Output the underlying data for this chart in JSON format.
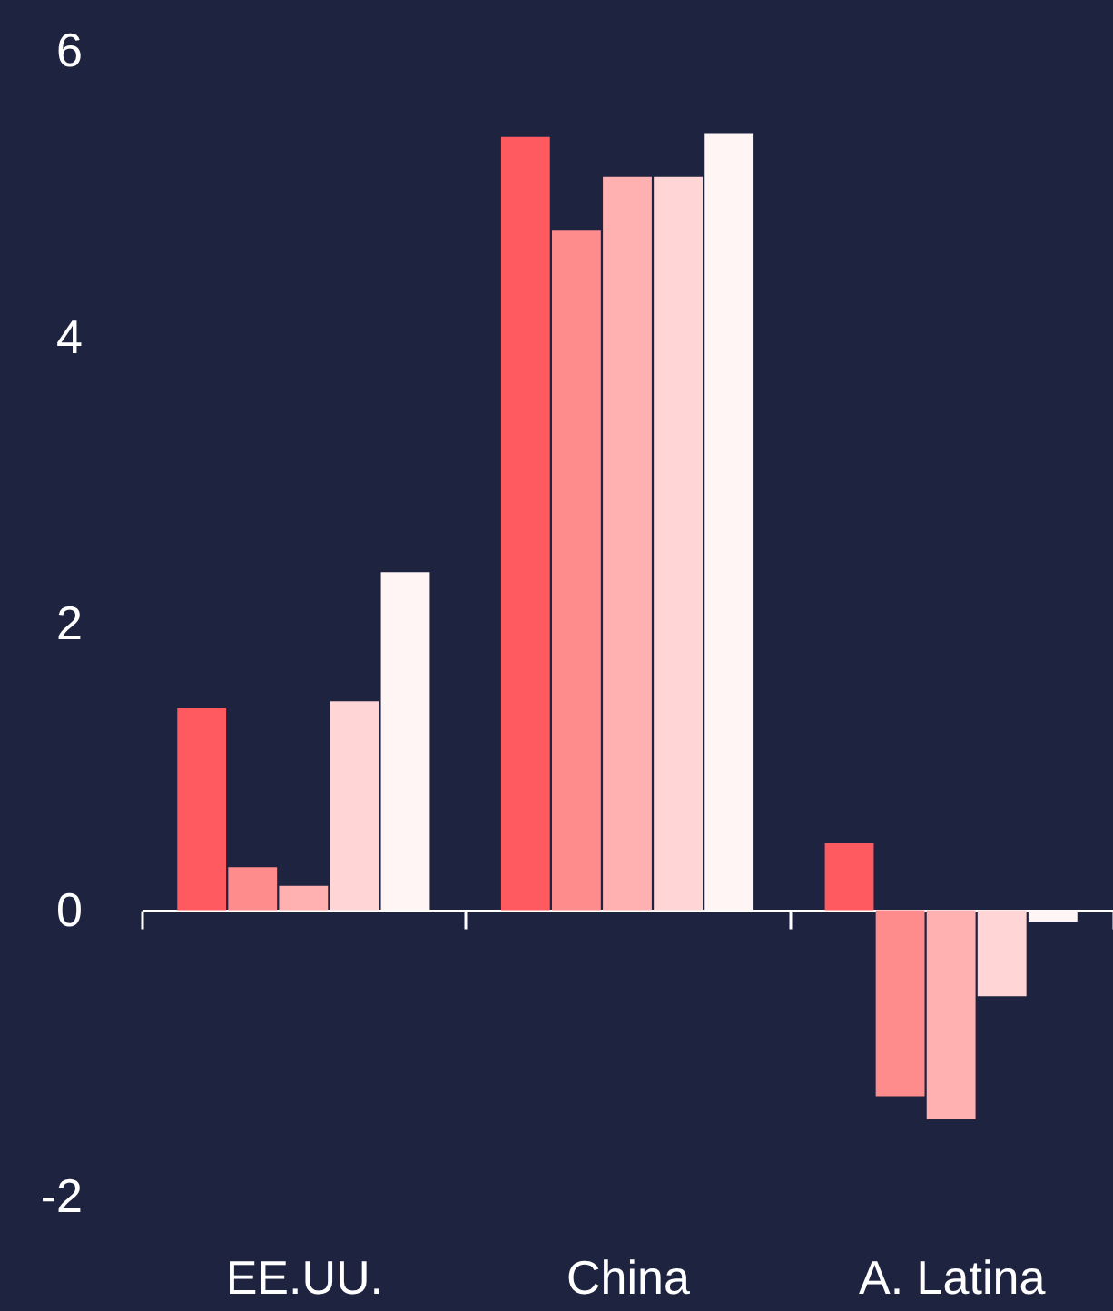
{
  "chart_data": {
    "type": "bar",
    "categories": [
      "EE.UU.",
      "China",
      "A. Latina"
    ],
    "series": [
      {
        "color": "#ff5a5f",
        "values": [
          1.41,
          5.4,
          0.47
        ]
      },
      {
        "color": "#ff8c8c",
        "values": [
          0.3,
          4.75,
          -1.3
        ]
      },
      {
        "color": "#ffb0b0",
        "values": [
          0.17,
          5.12,
          -1.46
        ]
      },
      {
        "color": "#ffd5d5",
        "values": [
          1.46,
          5.12,
          -0.6
        ]
      },
      {
        "color": "#fff5f5",
        "values": [
          2.36,
          5.42,
          -0.08
        ]
      }
    ],
    "ylim": [
      -2,
      6
    ],
    "yticks": [
      -2,
      0,
      2,
      4,
      6
    ],
    "legend": false
  }
}
